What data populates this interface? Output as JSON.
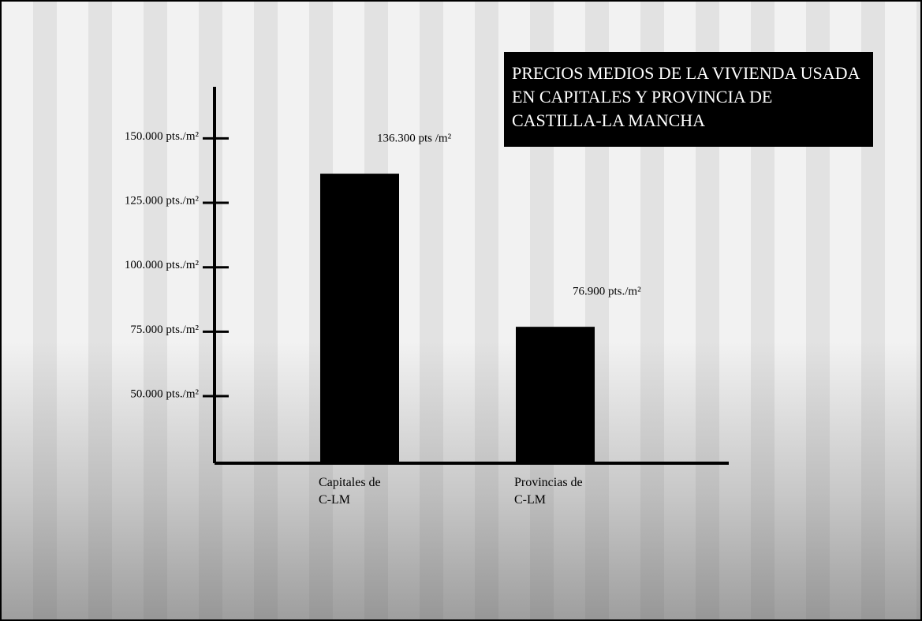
{
  "chart_data": {
    "type": "bar",
    "title": "PRECIOS MEDIOS DE LA VIVIENDA USADA EN CAPITALES Y PROVINCIA DE CASTILLA-LA MANCHA",
    "categories": [
      "Capitales de C-LM",
      "Provincias de C-LM"
    ],
    "values": [
      136300,
      76900
    ],
    "value_labels": [
      "136.300 pts /m²",
      "76.900 pts./m²"
    ],
    "color": "#000000",
    "ylim": [
      24000,
      170000
    ],
    "yticks": [
      {
        "value": 50000,
        "label": "50.000 pts./m²"
      },
      {
        "value": 75000,
        "label": "75.000 pts./m²"
      },
      {
        "value": 100000,
        "label": "100.000 pts./m²"
      },
      {
        "value": 125000,
        "label": "125.000 pts./m²"
      },
      {
        "value": 150000,
        "label": "150.000 pts./m²"
      }
    ],
    "grid": false
  }
}
